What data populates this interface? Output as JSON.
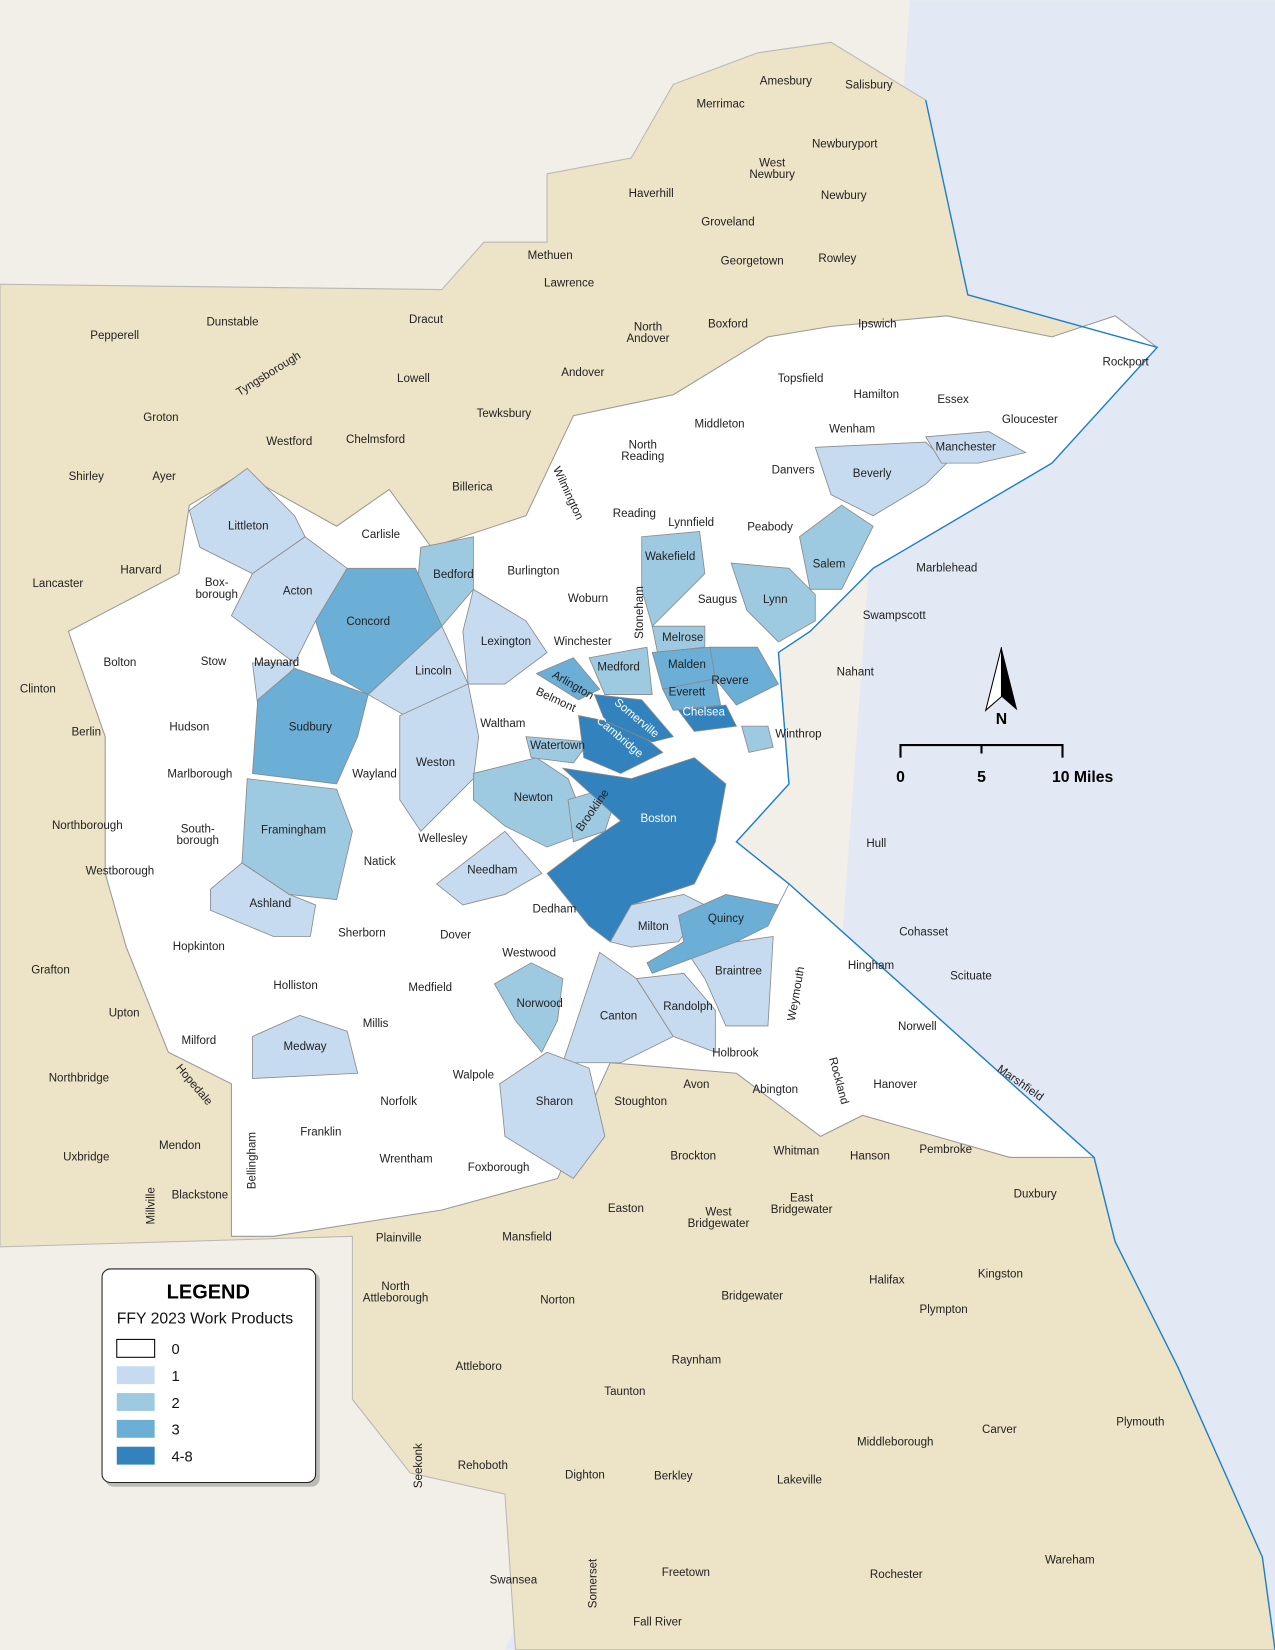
{
  "legend": {
    "title": "LEGEND",
    "subtitle": "FFY 2023 Work Products",
    "classes": [
      {
        "label": "0",
        "color": "#ffffff"
      },
      {
        "label": "1",
        "color": "#c6dbef"
      },
      {
        "label": "2",
        "color": "#9ecae1"
      },
      {
        "label": "3",
        "color": "#6baed6"
      },
      {
        "label": "4-8",
        "color": "#3182bd"
      }
    ]
  },
  "colors": {
    "outside_region": "#ede3c6",
    "ocean": "#e2e8f4",
    "background": "#f2eee8",
    "coastline": "#1a7fc9"
  },
  "north_arrow": {
    "label": "N"
  },
  "scale_bar": {
    "ticks": [
      "0",
      "5",
      "10 Miles"
    ]
  },
  "towns": [
    {
      "name": "Amesbury",
      "value": null
    },
    {
      "name": "Salisbury",
      "value": null
    },
    {
      "name": "Merrimac",
      "value": null
    },
    {
      "name": "West\nNewbury",
      "value": null
    },
    {
      "name": "Newburyport",
      "value": null
    },
    {
      "name": "Haverhill",
      "value": null
    },
    {
      "name": "Groveland",
      "value": null
    },
    {
      "name": "Newbury",
      "value": null
    },
    {
      "name": "Methuen",
      "value": null
    },
    {
      "name": "Georgetown",
      "value": null
    },
    {
      "name": "Rowley",
      "value": null
    },
    {
      "name": "Lawrence",
      "value": null
    },
    {
      "name": "Dracut",
      "value": null
    },
    {
      "name": "Dunstable",
      "value": null
    },
    {
      "name": "Pepperell",
      "value": null
    },
    {
      "name": "North\nAndover",
      "value": null
    },
    {
      "name": "Boxford",
      "value": null
    },
    {
      "name": "Tyngsborough",
      "value": null
    },
    {
      "name": "Lowell",
      "value": null
    },
    {
      "name": "Andover",
      "value": null
    },
    {
      "name": "Groton",
      "value": null
    },
    {
      "name": "Tewksbury",
      "value": null
    },
    {
      "name": "Westford",
      "value": null
    },
    {
      "name": "Chelmsford",
      "value": null
    },
    {
      "name": "Shirley",
      "value": null
    },
    {
      "name": "Ayer",
      "value": null
    },
    {
      "name": "Billerica",
      "value": null
    },
    {
      "name": "Lancaster",
      "value": null
    },
    {
      "name": "Harvard",
      "value": null
    },
    {
      "name": "Clinton",
      "value": null
    },
    {
      "name": "Berlin",
      "value": null
    },
    {
      "name": "Northborough",
      "value": null
    },
    {
      "name": "Westborough",
      "value": null
    },
    {
      "name": "Grafton",
      "value": null
    },
    {
      "name": "Upton",
      "value": null
    },
    {
      "name": "Northbridge",
      "value": null
    },
    {
      "name": "Hopedale",
      "value": null
    },
    {
      "name": "Mendon",
      "value": null
    },
    {
      "name": "Uxbridge",
      "value": null
    },
    {
      "name": "Millville",
      "value": null
    },
    {
      "name": "Blackstone",
      "value": null
    },
    {
      "name": "Plainville",
      "value": null
    },
    {
      "name": "Mansfield",
      "value": null
    },
    {
      "name": "North\nAttleborough",
      "value": null
    },
    {
      "name": "Norton",
      "value": null
    },
    {
      "name": "Easton",
      "value": null
    },
    {
      "name": "West\nBridgewater",
      "value": null
    },
    {
      "name": "East\nBridgewater",
      "value": null
    },
    {
      "name": "Brockton",
      "value": null
    },
    {
      "name": "Whitman",
      "value": null
    },
    {
      "name": "Hanson",
      "value": null
    },
    {
      "name": "Pembroke",
      "value": null
    },
    {
      "name": "Duxbury",
      "value": null
    },
    {
      "name": "Halifax",
      "value": null
    },
    {
      "name": "Kingston",
      "value": null
    },
    {
      "name": "Bridgewater",
      "value": null
    },
    {
      "name": "Plympton",
      "value": null
    },
    {
      "name": "Raynham",
      "value": null
    },
    {
      "name": "Attleboro",
      "value": null
    },
    {
      "name": "Taunton",
      "value": null
    },
    {
      "name": "Carver",
      "value": null
    },
    {
      "name": "Plymouth",
      "value": null
    },
    {
      "name": "Middleborough",
      "value": null
    },
    {
      "name": "Seekonk",
      "value": null
    },
    {
      "name": "Rehoboth",
      "value": null
    },
    {
      "name": "Dighton",
      "value": null
    },
    {
      "name": "Berkley",
      "value": null
    },
    {
      "name": "Lakeville",
      "value": null
    },
    {
      "name": "Swansea",
      "value": null
    },
    {
      "name": "Freetown",
      "value": null
    },
    {
      "name": "Rochester",
      "value": null
    },
    {
      "name": "Wareham",
      "value": null
    },
    {
      "name": "Somerset",
      "value": null
    },
    {
      "name": "Fall River",
      "value": null
    },
    {
      "name": "Wilmington",
      "value": "0"
    },
    {
      "name": "North\nReading",
      "value": "0"
    },
    {
      "name": "Middleton",
      "value": "0"
    },
    {
      "name": "Topsfield",
      "value": "0"
    },
    {
      "name": "Ipswich",
      "value": "0"
    },
    {
      "name": "Hamilton",
      "value": "0"
    },
    {
      "name": "Essex",
      "value": "0"
    },
    {
      "name": "Rockport",
      "value": "0"
    },
    {
      "name": "Gloucester",
      "value": "0"
    },
    {
      "name": "Wenham",
      "value": "0"
    },
    {
      "name": "Danvers",
      "value": "0"
    },
    {
      "name": "Carlisle",
      "value": "0"
    },
    {
      "name": "Reading",
      "value": "0"
    },
    {
      "name": "Lynnfield",
      "value": "0"
    },
    {
      "name": "Peabody",
      "value": "0"
    },
    {
      "name": "Burlington",
      "value": "0"
    },
    {
      "name": "Woburn",
      "value": "0"
    },
    {
      "name": "Saugus",
      "value": "0"
    },
    {
      "name": "Marblehead",
      "value": "0"
    },
    {
      "name": "Swampscott",
      "value": "0"
    },
    {
      "name": "Nahant",
      "value": "0"
    },
    {
      "name": "Winchester",
      "value": "0"
    },
    {
      "name": "Stoneham",
      "value": "0"
    },
    {
      "name": "Bolton",
      "value": "0"
    },
    {
      "name": "Stow",
      "value": "0"
    },
    {
      "name": "Box-\nborough",
      "value": "0"
    },
    {
      "name": "Hudson",
      "value": "0"
    },
    {
      "name": "Marlborough",
      "value": "0"
    },
    {
      "name": "South-\nborough",
      "value": "0"
    },
    {
      "name": "Waltham",
      "value": "0"
    },
    {
      "name": "Belmont",
      "value": "0"
    },
    {
      "name": "Wayland",
      "value": "0"
    },
    {
      "name": "Natick",
      "value": "0"
    },
    {
      "name": "Wellesley",
      "value": "0"
    },
    {
      "name": "Hopkinton",
      "value": "0"
    },
    {
      "name": "Sherborn",
      "value": "0"
    },
    {
      "name": "Dover",
      "value": "0"
    },
    {
      "name": "Dedham",
      "value": "0"
    },
    {
      "name": "Westwood",
      "value": "0"
    },
    {
      "name": "Holliston",
      "value": "0"
    },
    {
      "name": "Medfield",
      "value": "0"
    },
    {
      "name": "Millis",
      "value": "0"
    },
    {
      "name": "Milford",
      "value": "0"
    },
    {
      "name": "Walpole",
      "value": "0"
    },
    {
      "name": "Norfolk",
      "value": "0"
    },
    {
      "name": "Franklin",
      "value": "0"
    },
    {
      "name": "Bellingham",
      "value": "0"
    },
    {
      "name": "Wrentham",
      "value": "0"
    },
    {
      "name": "Foxborough",
      "value": "0"
    },
    {
      "name": "Hull",
      "value": "0"
    },
    {
      "name": "Cohasset",
      "value": "0"
    },
    {
      "name": "Hingham",
      "value": "0"
    },
    {
      "name": "Scituate",
      "value": "0"
    },
    {
      "name": "Norwell",
      "value": "0"
    },
    {
      "name": "Hanover",
      "value": "0"
    },
    {
      "name": "Marshfield",
      "value": "0"
    },
    {
      "name": "Rockland",
      "value": "0"
    },
    {
      "name": "Abington",
      "value": "0"
    },
    {
      "name": "Avon",
      "value": "0"
    },
    {
      "name": "Stoughton",
      "value": "0"
    },
    {
      "name": "Holbrook",
      "value": "0"
    },
    {
      "name": "Weymouth",
      "value": "0"
    },
    {
      "name": "Littleton",
      "value": "1"
    },
    {
      "name": "Acton",
      "value": "1"
    },
    {
      "name": "Maynard",
      "value": "1"
    },
    {
      "name": "Lincoln",
      "value": "1"
    },
    {
      "name": "Lexington",
      "value": "1"
    },
    {
      "name": "Weston",
      "value": "1"
    },
    {
      "name": "Ashland",
      "value": "1"
    },
    {
      "name": "Needham",
      "value": "1"
    },
    {
      "name": "Medway",
      "value": "1"
    },
    {
      "name": "Milton",
      "value": "1"
    },
    {
      "name": "Canton",
      "value": "1"
    },
    {
      "name": "Randolph",
      "value": "1"
    },
    {
      "name": "Braintree",
      "value": "1"
    },
    {
      "name": "Sharon",
      "value": "1"
    },
    {
      "name": "Beverly",
      "value": "1"
    },
    {
      "name": "Manchester",
      "value": "1"
    },
    {
      "name": "Bedford",
      "value": "2"
    },
    {
      "name": "Framingham",
      "value": "2"
    },
    {
      "name": "Newton",
      "value": "2"
    },
    {
      "name": "Wakefield",
      "value": "2"
    },
    {
      "name": "Salem",
      "value": "2"
    },
    {
      "name": "Lynn",
      "value": "2"
    },
    {
      "name": "Norwood",
      "value": "2"
    },
    {
      "name": "Medford",
      "value": "2"
    },
    {
      "name": "Melrose",
      "value": "2"
    },
    {
      "name": "Watertown",
      "value": "2"
    },
    {
      "name": "Brookline",
      "value": "2"
    },
    {
      "name": "Winthrop",
      "value": "2"
    },
    {
      "name": "Concord",
      "value": "3"
    },
    {
      "name": "Sudbury",
      "value": "3"
    },
    {
      "name": "Malden",
      "value": "3"
    },
    {
      "name": "Revere",
      "value": "3"
    },
    {
      "name": "Everett",
      "value": "3"
    },
    {
      "name": "Quincy",
      "value": "3"
    },
    {
      "name": "Arlington",
      "value": "3"
    },
    {
      "name": "Boston",
      "value": "4-8"
    },
    {
      "name": "Cambridge",
      "value": "4-8"
    },
    {
      "name": "Somerville",
      "value": "4-8"
    },
    {
      "name": "Chelsea",
      "value": "4-8"
    }
  ]
}
